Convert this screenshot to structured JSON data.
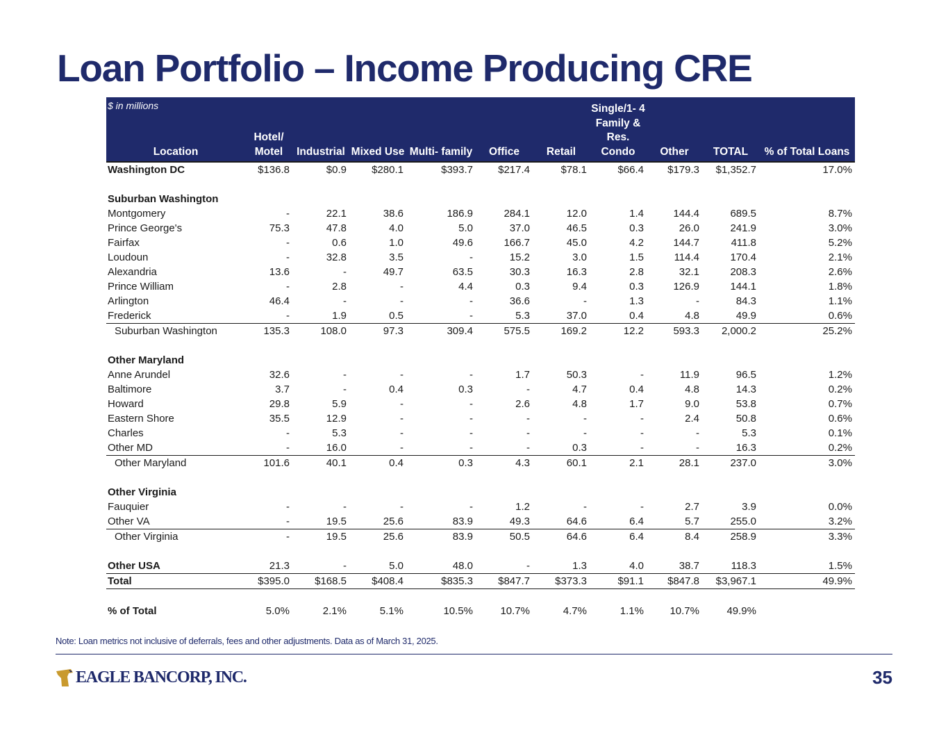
{
  "title": "Loan Portfolio – Income Producing CRE",
  "units_label": "$ in millions",
  "columns": [
    "Location",
    "Hotel/ Motel",
    "Industrial",
    "Mixed Use",
    "Multi- family",
    "Office",
    "Retail",
    "Single/1- 4 Family & Res. Condo",
    "Other",
    "TOTAL",
    "% of Total Loans"
  ],
  "rows": [
    {
      "type": "bold",
      "cells": [
        "Washington DC",
        "$136.8",
        "$0.9",
        "$280.1",
        "$393.7",
        "$217.4",
        "$78.1",
        "$66.4",
        "$179.3",
        "$1,352.7",
        "17.0%"
      ]
    },
    {
      "type": "spacer"
    },
    {
      "type": "section",
      "cells": [
        "Suburban Washington"
      ]
    },
    {
      "type": "data",
      "cells": [
        "Montgomery",
        "-",
        "22.1",
        "38.6",
        "186.9",
        "284.1",
        "12.0",
        "1.4",
        "144.4",
        "689.5",
        "8.7%"
      ]
    },
    {
      "type": "data",
      "cells": [
        "Prince George's",
        "75.3",
        "47.8",
        "4.0",
        "5.0",
        "37.0",
        "46.5",
        "0.3",
        "26.0",
        "241.9",
        "3.0%"
      ]
    },
    {
      "type": "data",
      "cells": [
        "Fairfax",
        "-",
        "0.6",
        "1.0",
        "49.6",
        "166.7",
        "45.0",
        "4.2",
        "144.7",
        "411.8",
        "5.2%"
      ]
    },
    {
      "type": "data",
      "cells": [
        "Loudoun",
        "-",
        "32.8",
        "3.5",
        "-",
        "15.2",
        "3.0",
        "1.5",
        "114.4",
        "170.4",
        "2.1%"
      ]
    },
    {
      "type": "data",
      "cells": [
        "Alexandria",
        "13.6",
        "-",
        "49.7",
        "63.5",
        "30.3",
        "16.3",
        "2.8",
        "32.1",
        "208.3",
        "2.6%"
      ]
    },
    {
      "type": "data",
      "cells": [
        "Prince William",
        "-",
        "2.8",
        "-",
        "4.4",
        "0.3",
        "9.4",
        "0.3",
        "126.9",
        "144.1",
        "1.8%"
      ]
    },
    {
      "type": "data",
      "cells": [
        "Arlington",
        "46.4",
        "-",
        "-",
        "-",
        "36.6",
        "-",
        "1.3",
        "-",
        "84.3",
        "1.1%"
      ]
    },
    {
      "type": "data",
      "cells": [
        "Frederick",
        "-",
        "1.9",
        "0.5",
        "-",
        "5.3",
        "37.0",
        "0.4",
        "4.8",
        "49.9",
        "0.6%"
      ]
    },
    {
      "type": "subtotal",
      "cells": [
        "Suburban Washington",
        "135.3",
        "108.0",
        "97.3",
        "309.4",
        "575.5",
        "169.2",
        "12.2",
        "593.3",
        "2,000.2",
        "25.2%"
      ]
    },
    {
      "type": "spacer"
    },
    {
      "type": "section",
      "cells": [
        "Other Maryland"
      ]
    },
    {
      "type": "data",
      "cells": [
        "Anne Arundel",
        "32.6",
        "-",
        "-",
        "-",
        "1.7",
        "50.3",
        "-",
        "11.9",
        "96.5",
        "1.2%"
      ]
    },
    {
      "type": "data",
      "cells": [
        "Baltimore",
        "3.7",
        "-",
        "0.4",
        "0.3",
        "-",
        "4.7",
        "0.4",
        "4.8",
        "14.3",
        "0.2%"
      ]
    },
    {
      "type": "data",
      "cells": [
        "Howard",
        "29.8",
        "5.9",
        "-",
        "-",
        "2.6",
        "4.8",
        "1.7",
        "9.0",
        "53.8",
        "0.7%"
      ]
    },
    {
      "type": "data",
      "cells": [
        "Eastern Shore",
        "35.5",
        "12.9",
        "-",
        "-",
        "-",
        "-",
        "-",
        "2.4",
        "50.8",
        "0.6%"
      ]
    },
    {
      "type": "data",
      "cells": [
        "Charles",
        "-",
        "5.3",
        "-",
        "-",
        "-",
        "-",
        "-",
        "-",
        "5.3",
        "0.1%"
      ]
    },
    {
      "type": "data",
      "cells": [
        "Other MD",
        "-",
        "16.0",
        "-",
        "-",
        "-",
        "0.3",
        "-",
        "-",
        "16.3",
        "0.2%"
      ]
    },
    {
      "type": "subtotal",
      "cells": [
        "Other Maryland",
        "101.6",
        "40.1",
        "0.4",
        "0.3",
        "4.3",
        "60.1",
        "2.1",
        "28.1",
        "237.0",
        "3.0%"
      ]
    },
    {
      "type": "spacer"
    },
    {
      "type": "section",
      "cells": [
        "Other Virginia"
      ]
    },
    {
      "type": "data",
      "cells": [
        "Fauquier",
        "-",
        "-",
        "-",
        "-",
        "1.2",
        "-",
        "-",
        "2.7",
        "3.9",
        "0.0%"
      ]
    },
    {
      "type": "data",
      "cells": [
        "Other VA",
        "-",
        "19.5",
        "25.6",
        "83.9",
        "49.3",
        "64.6",
        "6.4",
        "5.7",
        "255.0",
        "3.2%"
      ]
    },
    {
      "type": "subtotal",
      "cells": [
        "Other Virginia",
        "-",
        "19.5",
        "25.6",
        "83.9",
        "50.5",
        "64.6",
        "6.4",
        "8.4",
        "258.9",
        "3.3%"
      ]
    },
    {
      "type": "spacer"
    },
    {
      "type": "bold",
      "cells": [
        "Other USA",
        "21.3",
        "-",
        "5.0",
        "48.0",
        "-",
        "1.3",
        "4.0",
        "38.7",
        "118.3",
        "1.5%"
      ]
    },
    {
      "type": "total",
      "cells": [
        "Total",
        "$395.0",
        "$168.5",
        "$408.4",
        "$835.3",
        "$847.7",
        "$373.3",
        "$91.1",
        "$847.8",
        "$3,967.1",
        "49.9%"
      ]
    },
    {
      "type": "spacer"
    },
    {
      "type": "bold",
      "cells": [
        "% of Total",
        "5.0%",
        "2.1%",
        "5.1%",
        "10.5%",
        "10.7%",
        "4.7%",
        "1.1%",
        "10.7%",
        "49.9%",
        ""
      ]
    }
  ],
  "note": "Note: Loan metrics not inclusive of deferrals, fees and other adjustments. Data as of March 31, 2025.",
  "logo_text": "EAGLE BANCORP, INC.",
  "page_number": "35",
  "colors": {
    "brand_navy": "#1f2a6b",
    "logo_gold": "#c99a2e"
  }
}
